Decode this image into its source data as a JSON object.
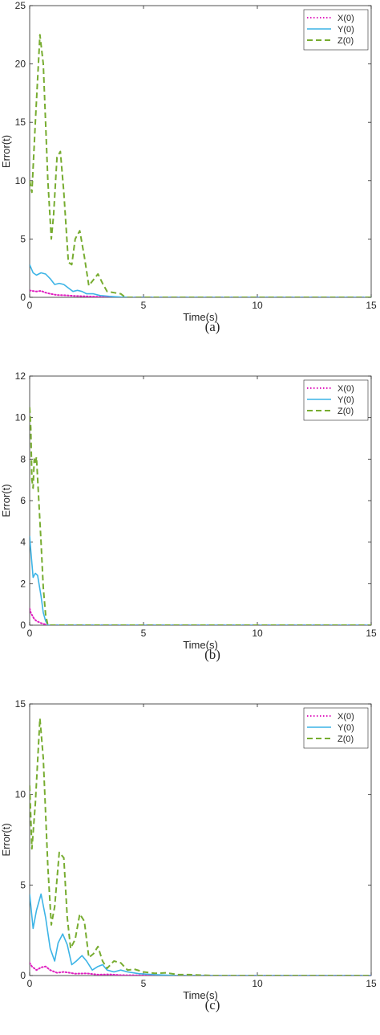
{
  "chart_data": [
    {
      "type": "line",
      "caption": "(a)",
      "xlabel": "Time(s)",
      "ylabel": "Error(t)",
      "xlim": [
        0,
        15
      ],
      "ylim": [
        0,
        25
      ],
      "xticks": [
        "0",
        "5",
        "10",
        "15"
      ],
      "yticks": [
        "0",
        "5",
        "10",
        "15",
        "20",
        "25"
      ],
      "legend_position": "top-right",
      "series": [
        {
          "name": "X(0)",
          "color": "#e020c0",
          "style": "dotted",
          "x": [
            0,
            0.1,
            0.3,
            0.5,
            0.7,
            0.9,
            1.2,
            1.5,
            2.0,
            2.5,
            3.0,
            3.5,
            4.0,
            15
          ],
          "values": [
            0.6,
            0.55,
            0.5,
            0.55,
            0.4,
            0.3,
            0.2,
            0.18,
            0.12,
            0.08,
            0.05,
            0.02,
            0.0,
            0.0
          ]
        },
        {
          "name": "Y(0)",
          "color": "#3cb4e6",
          "style": "solid",
          "x": [
            0,
            0.15,
            0.3,
            0.5,
            0.7,
            0.9,
            1.1,
            1.3,
            1.5,
            1.7,
            1.9,
            2.1,
            2.3,
            2.5,
            2.8,
            3.1,
            3.5,
            4.0,
            4.5,
            15
          ],
          "values": [
            2.8,
            2.1,
            1.9,
            2.1,
            2.0,
            1.6,
            1.1,
            1.2,
            1.1,
            0.8,
            0.5,
            0.6,
            0.5,
            0.3,
            0.3,
            0.15,
            0.08,
            0.02,
            0.0,
            0.0
          ]
        },
        {
          "name": "Z(0)",
          "color": "#77ac30",
          "style": "dashed",
          "x": [
            0,
            0.1,
            0.25,
            0.45,
            0.6,
            0.8,
            0.95,
            1.05,
            1.2,
            1.35,
            1.5,
            1.7,
            1.85,
            2.0,
            2.2,
            2.4,
            2.6,
            2.8,
            3.0,
            3.2,
            3.4,
            3.7,
            4.0,
            4.2,
            15
          ],
          "values": [
            10,
            9,
            15,
            22.5,
            20,
            10,
            5,
            7,
            12,
            12.5,
            9,
            3,
            2.8,
            5,
            5.7,
            3.5,
            1,
            1.5,
            2,
            1.2,
            0.5,
            0.4,
            0.3,
            0.0,
            0.0
          ]
        }
      ]
    },
    {
      "type": "line",
      "caption": "(b)",
      "xlabel": "Time(s)",
      "ylabel": "Error(t)",
      "xlim": [
        0,
        15
      ],
      "ylim": [
        0,
        12
      ],
      "xticks": [
        "0",
        "5",
        "10",
        "15"
      ],
      "yticks": [
        "0",
        "2",
        "4",
        "6",
        "8",
        "10",
        "12"
      ],
      "legend_position": "top-right",
      "series": [
        {
          "name": "X(0)",
          "color": "#e020c0",
          "style": "dotted",
          "x": [
            0,
            0.05,
            0.1,
            0.2,
            0.3,
            0.5,
            0.7,
            0.8,
            15
          ],
          "values": [
            0.8,
            0.6,
            0.5,
            0.3,
            0.2,
            0.1,
            0.03,
            0.0,
            0.0
          ]
        },
        {
          "name": "Y(0)",
          "color": "#3cb4e6",
          "style": "solid",
          "x": [
            0,
            0.05,
            0.15,
            0.25,
            0.35,
            0.5,
            0.6,
            0.7,
            0.8,
            15
          ],
          "values": [
            4.3,
            3.6,
            2.3,
            2.5,
            2.4,
            1.4,
            0.6,
            0.2,
            0.0,
            0.0
          ]
        },
        {
          "name": "Z(0)",
          "color": "#77ac30",
          "style": "dashed",
          "x": [
            0,
            0.05,
            0.1,
            0.15,
            0.2,
            0.25,
            0.3,
            0.4,
            0.5,
            0.6,
            0.7,
            0.8,
            15
          ],
          "values": [
            10.5,
            9.5,
            7.0,
            6.6,
            8.0,
            7.8,
            8.1,
            6.0,
            4.0,
            1.8,
            0.5,
            0.0,
            0.0
          ]
        }
      ]
    },
    {
      "type": "line",
      "caption": "(c)",
      "xlabel": "Time(s)",
      "ylabel": "Error(t)",
      "xlim": [
        0,
        15
      ],
      "ylim": [
        0,
        15
      ],
      "xticks": [
        "0",
        "5",
        "10",
        "15"
      ],
      "yticks": [
        "0",
        "5",
        "10",
        "15"
      ],
      "legend_position": "top-right",
      "series": [
        {
          "name": "X(0)",
          "color": "#e020c0",
          "style": "dotted",
          "x": [
            0,
            0.1,
            0.3,
            0.5,
            0.7,
            0.9,
            1.2,
            1.5,
            2.0,
            2.5,
            3.0,
            3.5,
            4.0,
            5.0,
            6.0,
            7.0,
            15
          ],
          "values": [
            0.7,
            0.5,
            0.3,
            0.45,
            0.5,
            0.3,
            0.15,
            0.2,
            0.1,
            0.12,
            0.05,
            0.06,
            0.02,
            0.01,
            0.0,
            0.0,
            0.0
          ]
        },
        {
          "name": "Y(0)",
          "color": "#3cb4e6",
          "style": "solid",
          "x": [
            0,
            0.15,
            0.3,
            0.5,
            0.7,
            0.9,
            1.1,
            1.25,
            1.45,
            1.65,
            1.85,
            2.05,
            2.3,
            2.5,
            2.75,
            3.0,
            3.2,
            3.4,
            3.7,
            4.0,
            4.3,
            4.8,
            5.5,
            6.5,
            15
          ],
          "values": [
            4.5,
            2.6,
            3.6,
            4.5,
            3.2,
            1.5,
            0.8,
            1.8,
            2.3,
            1.7,
            0.6,
            0.8,
            1.1,
            0.8,
            0.3,
            0.5,
            0.6,
            0.3,
            0.2,
            0.3,
            0.2,
            0.1,
            0.05,
            0.0,
            0.0
          ]
        },
        {
          "name": "Z(0)",
          "color": "#77ac30",
          "style": "dashed",
          "x": [
            0,
            0.1,
            0.25,
            0.45,
            0.6,
            0.8,
            0.95,
            1.1,
            1.3,
            1.5,
            1.65,
            1.8,
            2.0,
            2.2,
            2.4,
            2.6,
            2.8,
            3.0,
            3.2,
            3.4,
            3.7,
            4.0,
            4.3,
            4.6,
            5.0,
            5.5,
            6.0,
            6.5,
            7.0,
            8.0,
            15
          ],
          "values": [
            10.5,
            7.0,
            9.5,
            14.2,
            12.0,
            6.0,
            2.8,
            3.8,
            6.8,
            6.5,
            3.2,
            1.5,
            2.0,
            3.4,
            3.0,
            1.0,
            1.2,
            1.6,
            0.8,
            0.4,
            0.8,
            0.7,
            0.3,
            0.35,
            0.2,
            0.12,
            0.15,
            0.05,
            0.05,
            0.0,
            0.0
          ]
        }
      ]
    }
  ]
}
